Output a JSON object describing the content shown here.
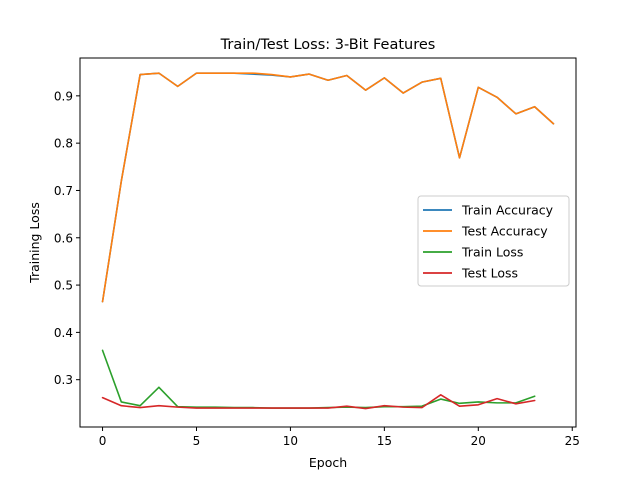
{
  "chart_data": {
    "type": "line",
    "title": "Train/Test Loss: 3-Bit Features",
    "xlabel": "Epoch",
    "ylabel": "Training Loss",
    "xlim": [
      -1.2,
      25.2
    ],
    "ylim": [
      0.2,
      0.98
    ],
    "xticks": [
      0,
      5,
      10,
      15,
      20,
      25
    ],
    "yticks": [
      0.3,
      0.4,
      0.5,
      0.6,
      0.7,
      0.8,
      0.9
    ],
    "grid": false,
    "legend_position": "center-right",
    "series": [
      {
        "name": "Train Accuracy",
        "color": "#1f77b4",
        "x": [
          0,
          1,
          2,
          3,
          4,
          5,
          6,
          7,
          8,
          9,
          10,
          11,
          12,
          13,
          14,
          15,
          16,
          17,
          18,
          19,
          20,
          21,
          22,
          23,
          24
        ],
        "values": [
          0.465,
          0.72,
          0.945,
          0.948,
          0.92,
          0.948,
          0.948,
          0.948,
          0.946,
          0.944,
          0.94,
          0.946,
          0.933,
          0.943,
          0.912,
          0.938,
          0.906,
          0.929,
          0.937,
          0.769,
          0.918,
          0.897,
          0.862,
          0.877,
          0.841
        ]
      },
      {
        "name": "Test Accuracy",
        "color": "#ff7f0e",
        "x": [
          0,
          1,
          2,
          3,
          4,
          5,
          6,
          7,
          8,
          9,
          10,
          11,
          12,
          13,
          14,
          15,
          16,
          17,
          18,
          19,
          20,
          21,
          22,
          23,
          24
        ],
        "values": [
          0.465,
          0.72,
          0.945,
          0.948,
          0.92,
          0.948,
          0.948,
          0.948,
          0.948,
          0.945,
          0.94,
          0.946,
          0.933,
          0.943,
          0.912,
          0.938,
          0.906,
          0.929,
          0.937,
          0.769,
          0.918,
          0.897,
          0.862,
          0.877,
          0.841
        ]
      },
      {
        "name": "Train Loss",
        "color": "#2ca02c",
        "x": [
          0,
          1,
          2,
          3,
          4,
          5,
          6,
          7,
          8,
          9,
          10,
          11,
          12,
          13,
          14,
          15,
          16,
          17,
          18,
          19,
          20,
          21,
          22,
          23
        ],
        "values": [
          0.362,
          0.253,
          0.245,
          0.284,
          0.243,
          0.242,
          0.242,
          0.241,
          0.241,
          0.24,
          0.24,
          0.24,
          0.241,
          0.242,
          0.241,
          0.243,
          0.243,
          0.244,
          0.259,
          0.25,
          0.253,
          0.251,
          0.251,
          0.265
        ]
      },
      {
        "name": "Test Loss",
        "color": "#d62728",
        "x": [
          0,
          1,
          2,
          3,
          4,
          5,
          6,
          7,
          8,
          9,
          10,
          11,
          12,
          13,
          14,
          15,
          16,
          17,
          18,
          19,
          20,
          21,
          22,
          23
        ],
        "values": [
          0.262,
          0.245,
          0.241,
          0.245,
          0.242,
          0.24,
          0.24,
          0.24,
          0.24,
          0.24,
          0.24,
          0.24,
          0.24,
          0.244,
          0.239,
          0.245,
          0.242,
          0.241,
          0.268,
          0.244,
          0.247,
          0.26,
          0.249,
          0.256
        ]
      }
    ]
  }
}
